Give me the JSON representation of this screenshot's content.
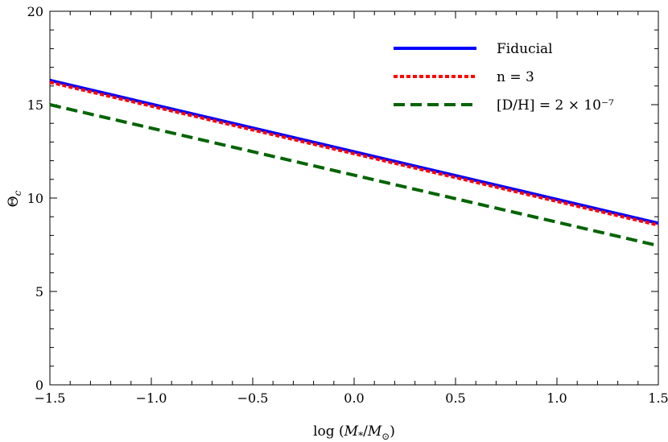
{
  "chart_data": {
    "type": "line",
    "title": "",
    "xlabel": "log (M*/M⊙)",
    "ylabel": "Θc",
    "xlim": [
      -1.5,
      1.5
    ],
    "ylim": [
      0,
      20
    ],
    "xticks": [
      -1.5,
      -1.0,
      -0.5,
      0.0,
      0.5,
      1.0,
      1.5
    ],
    "xtick_labels": [
      "−1.5",
      "−1.0",
      "−0.5",
      "0.0",
      "0.5",
      "1.0",
      "1.5"
    ],
    "yticks": [
      0,
      5,
      10,
      15,
      20
    ],
    "ytick_labels": [
      "0",
      "5",
      "10",
      "15",
      "20"
    ],
    "grid": false,
    "legend_position": "top-right",
    "series": [
      {
        "name": "Fiducial",
        "x": [
          -1.5,
          1.5
        ],
        "y": [
          16.3,
          8.65
        ],
        "color": "#0000ff",
        "style": "solid"
      },
      {
        "name": "n = 3",
        "x": [
          -1.5,
          1.5
        ],
        "y": [
          16.2,
          8.55
        ],
        "color": "#ff0000",
        "style": "dotted"
      },
      {
        "name": "[D/H] = 2 × 10⁻⁷",
        "x": [
          -1.5,
          1.5
        ],
        "y": [
          15.0,
          7.45
        ],
        "color": "#006400",
        "style": "dashed"
      }
    ]
  }
}
